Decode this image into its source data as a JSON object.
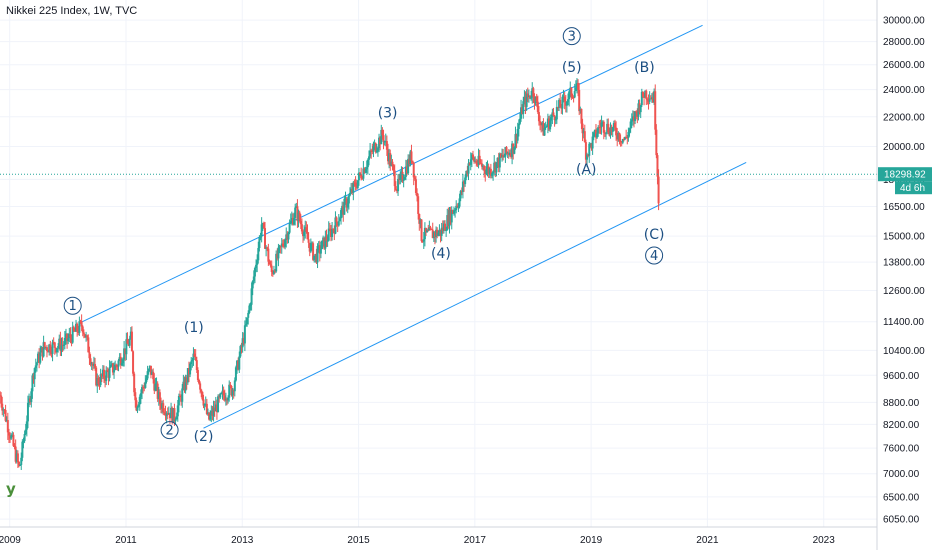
{
  "header": {
    "title": "Nikkei 225 Index, 1W, TVC"
  },
  "price_label": {
    "value": "18298.92",
    "countdown": "4d 6h",
    "color": "#26a69a"
  },
  "corner_mark": "y",
  "colors": {
    "up": "#26a69a",
    "down": "#ef5350",
    "channel": "#2196f3",
    "wave": "#1c4f82",
    "grid": "#f0f3fa"
  },
  "chart_data": {
    "type": "candlestick",
    "title": "Nikkei 225 Index, 1W, TVC",
    "y_axis": {
      "scale": "log",
      "range": [
        5900,
        32000
      ],
      "side": "right",
      "ticks": [
        "30000.00",
        "28000.00",
        "26000.00",
        "24000.00",
        "22000.00",
        "20000.00",
        "18000.00",
        "16500.00",
        "15000.00",
        "13800.00",
        "12600.00",
        "11400.00",
        "10400.00",
        "9600.00",
        "8800.00",
        "8200.00",
        "7600.00",
        "7000.00",
        "6500.00",
        "6050.00"
      ]
    },
    "x_axis": {
      "range": [
        "2008-11",
        "2023-12"
      ],
      "ticks": [
        "2009",
        "2011",
        "2013",
        "2015",
        "2017",
        "2019",
        "2021",
        "2023"
      ]
    },
    "grid": true,
    "last_price": 18298.92,
    "price_path": [
      [
        "2008-11",
        9000
      ],
      [
        "2009-03",
        7100
      ],
      [
        "2009-06",
        9800
      ],
      [
        "2009-08",
        10500
      ],
      [
        "2009-12",
        10600
      ],
      [
        "2010-04",
        11300
      ],
      [
        "2010-07",
        9400
      ],
      [
        "2010-11",
        9900
      ],
      [
        "2011-02",
        10800
      ],
      [
        "2011-03",
        8700
      ],
      [
        "2011-06",
        9800
      ],
      [
        "2011-08",
        8800
      ],
      [
        "2011-11",
        8400
      ],
      [
        "2012-03",
        10200
      ],
      [
        "2012-06",
        8300
      ],
      [
        "2012-09",
        9000
      ],
      [
        "2012-11",
        9200
      ],
      [
        "2013-02",
        11400
      ],
      [
        "2013-05",
        15600
      ],
      [
        "2013-07",
        13300
      ],
      [
        "2013-12",
        16300
      ],
      [
        "2014-04",
        14000
      ],
      [
        "2014-08",
        15500
      ],
      [
        "2014-12",
        17500
      ],
      [
        "2015-04",
        19800
      ],
      [
        "2015-06",
        20800
      ],
      [
        "2015-09",
        17500
      ],
      [
        "2015-12",
        19500
      ],
      [
        "2016-02",
        15000
      ],
      [
        "2016-06",
        15200
      ],
      [
        "2016-10",
        17000
      ],
      [
        "2016-12",
        19300
      ],
      [
        "2017-04",
        18500
      ],
      [
        "2017-09",
        20000
      ],
      [
        "2017-11",
        22900
      ],
      [
        "2018-01",
        24000
      ],
      [
        "2018-03",
        21000
      ],
      [
        "2018-06",
        22500
      ],
      [
        "2018-10",
        24200
      ],
      [
        "2018-12",
        19500
      ],
      [
        "2019-03",
        21500
      ],
      [
        "2019-06",
        21000
      ],
      [
        "2019-08",
        20400
      ],
      [
        "2019-12",
        23800
      ],
      [
        "2020-02",
        23400
      ],
      [
        "2020-03",
        16500
      ],
      [
        "2020-03",
        18298.92
      ]
    ],
    "channel_lines": [
      {
        "from": [
          "2010-04",
          11400
        ],
        "to": [
          "2020-12",
          29500
        ]
      },
      {
        "from": [
          "2012-05",
          8100
        ],
        "to": [
          "2021-09",
          19000
        ]
      }
    ],
    "annotations": [
      {
        "text": "1",
        "style": "circled",
        "at": [
          "2010-02",
          12000
        ]
      },
      {
        "text": "2",
        "style": "circled",
        "at": [
          "2011-10",
          8050
        ]
      },
      {
        "text": "(1)",
        "style": "plain",
        "at": [
          "2012-03",
          11200
        ]
      },
      {
        "text": "(2)",
        "style": "plain",
        "at": [
          "2012-05",
          7900
        ]
      },
      {
        "text": "(3)",
        "style": "plain",
        "at": [
          "2015-07",
          22300
        ]
      },
      {
        "text": "(4)",
        "style": "plain",
        "at": [
          "2016-06",
          14200
        ]
      },
      {
        "text": "3",
        "style": "circled",
        "at": [
          "2018-09",
          28500
        ]
      },
      {
        "text": "(5)",
        "style": "plain",
        "at": [
          "2018-09",
          25800
        ]
      },
      {
        "text": "(B)",
        "style": "plain",
        "at": [
          "2019-12",
          25800
        ]
      },
      {
        "text": "(A)",
        "style": "plain",
        "at": [
          "2018-12",
          18600
        ]
      },
      {
        "text": "(C)",
        "style": "plain",
        "at": [
          "2020-02",
          15100
        ]
      },
      {
        "text": "4",
        "style": "circled",
        "at": [
          "2020-02",
          14100
        ]
      }
    ]
  }
}
